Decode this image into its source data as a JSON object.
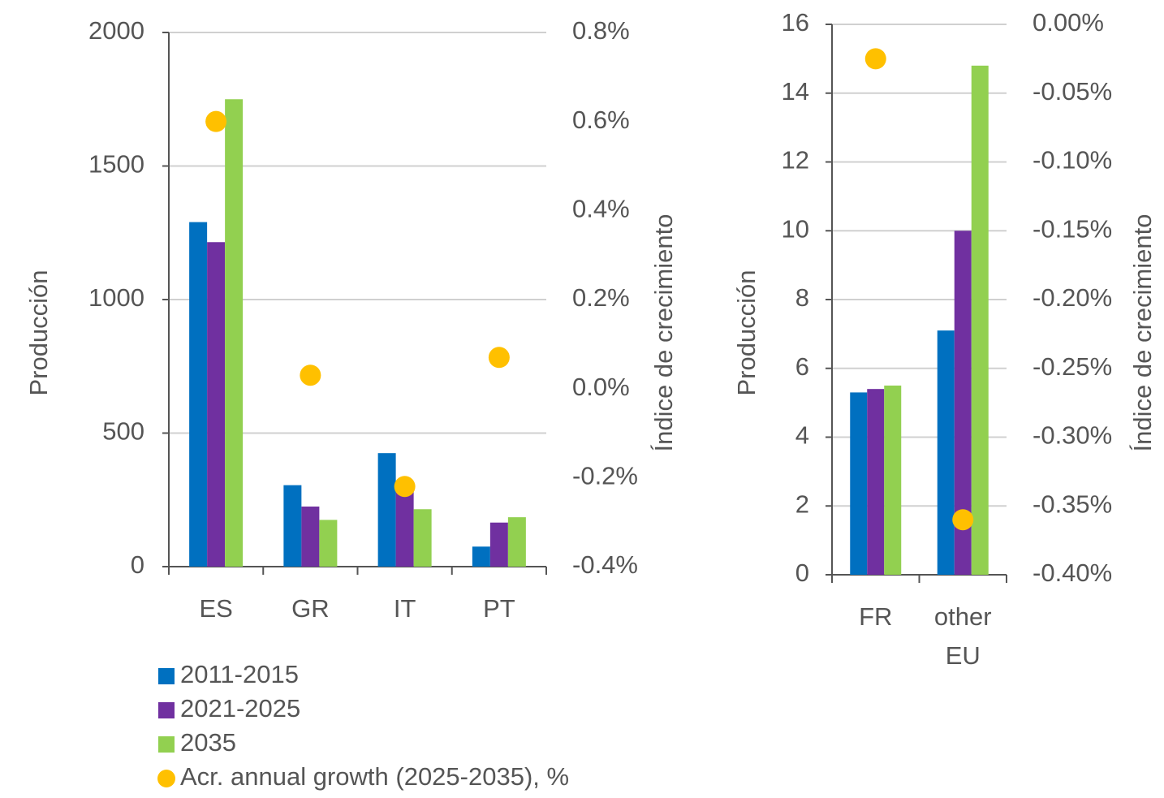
{
  "chart_data": [
    {
      "type": "bar",
      "categories": [
        "ES",
        "GR",
        "IT",
        "PT"
      ],
      "y_label": "Producción",
      "y2_label": "Índice de crecimiento",
      "ylim": [
        0,
        2000
      ],
      "yticks": [
        0,
        500,
        1000,
        1500,
        2000
      ],
      "y2lim": [
        -0.4,
        0.8
      ],
      "y2ticks": [
        {
          "value": -0.4,
          "label": "-0.4%"
        },
        {
          "value": -0.2,
          "label": "-0.2%"
        },
        {
          "value": 0.0,
          "label": "0.0%"
        },
        {
          "value": 0.2,
          "label": "0.2%"
        },
        {
          "value": 0.4,
          "label": "0.4%"
        },
        {
          "value": 0.6,
          "label": "0.6%"
        },
        {
          "value": 0.8,
          "label": "0.8%"
        }
      ],
      "grid": true,
      "series": [
        {
          "name": "2011-2015",
          "color": "#0070c0",
          "type": "bar",
          "values": [
            1290,
            305,
            425,
            75
          ]
        },
        {
          "name": "2021-2025",
          "color": "#7030a0",
          "type": "bar",
          "values": [
            1215,
            225,
            300,
            165
          ]
        },
        {
          "name": "2035",
          "color": "#92d050",
          "type": "bar",
          "values": [
            1750,
            175,
            215,
            185
          ]
        },
        {
          "name": "Acr. annual growth (2025-2035), %",
          "color": "#ffc000",
          "type": "scatter",
          "axis": "y2",
          "values": [
            0.6,
            0.03,
            -0.22,
            0.07
          ]
        }
      ]
    },
    {
      "type": "bar",
      "categories": [
        "FR",
        "other EU"
      ],
      "y_label": "Producción",
      "y2_label": "Índice de crecimiento",
      "ylim": [
        0,
        16
      ],
      "yticks": [
        0,
        2,
        4,
        6,
        8,
        10,
        12,
        14,
        16
      ],
      "y2lim": [
        -0.4,
        0.0
      ],
      "y2ticks": [
        {
          "value": -0.4,
          "label": "-0.40%"
        },
        {
          "value": -0.35,
          "label": "-0.35%"
        },
        {
          "value": -0.3,
          "label": "-0.30%"
        },
        {
          "value": -0.25,
          "label": "-0.25%"
        },
        {
          "value": -0.2,
          "label": "-0.20%"
        },
        {
          "value": -0.15,
          "label": "-0.15%"
        },
        {
          "value": -0.1,
          "label": "-0.10%"
        },
        {
          "value": -0.05,
          "label": "-0.05%"
        },
        {
          "value": 0.0,
          "label": "0.00%"
        }
      ],
      "grid": true,
      "series": [
        {
          "type": "bar",
          "values": [
            5.3,
            7.1
          ]
        },
        {
          "type": "bar",
          "values": [
            5.4,
            10
          ]
        },
        {
          "type": "bar",
          "values": [
            5.5,
            14.8
          ]
        },
        {
          "type": "scatter",
          "axis": "y2",
          "values": [
            -0.025,
            -0.36
          ]
        }
      ]
    }
  ]
}
